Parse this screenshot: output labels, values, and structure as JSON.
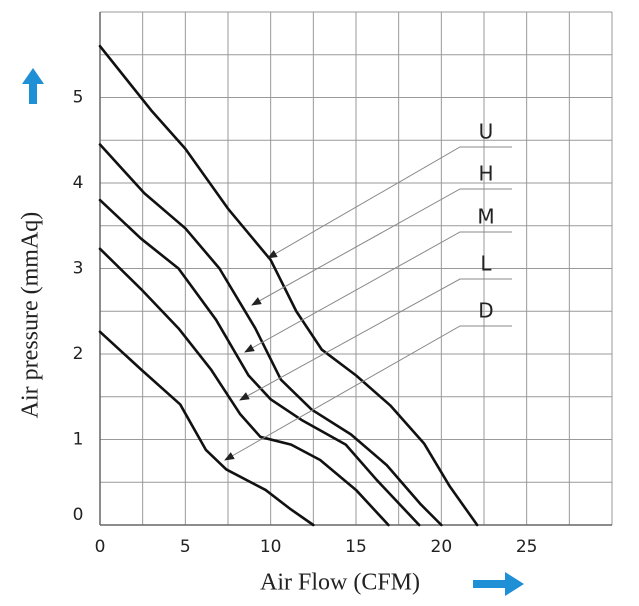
{
  "chart_data": {
    "type": "line",
    "xlabel": "Air Flow (CFM)",
    "ylabel": "Air pressure (mmAq)",
    "xlim": [
      0,
      30
    ],
    "ylim": [
      0,
      6
    ],
    "xticks": [
      0,
      5,
      10,
      15,
      20,
      25
    ],
    "yticks": [
      0,
      1,
      2,
      3,
      4,
      5
    ],
    "xgrid": [
      0,
      2.5,
      5,
      7.5,
      10,
      12.5,
      15,
      17.5,
      20,
      22.5,
      25,
      27.5,
      30
    ],
    "ygrid": [
      0,
      0.5,
      1,
      1.5,
      2,
      2.5,
      3,
      3.5,
      4,
      4.5,
      5,
      5.5,
      6
    ],
    "series": [
      {
        "name": "U",
        "color": "#111111",
        "x": [
          0,
          3,
          5,
          7.5,
          10,
          11.5,
          13,
          15,
          17,
          19,
          20.5,
          22.1
        ],
        "values": [
          5.6,
          4.85,
          4.4,
          3.7,
          3.1,
          2.5,
          2.05,
          1.75,
          1.4,
          0.95,
          0.45,
          0
        ]
      },
      {
        "name": "H",
        "color": "#111111",
        "x": [
          0,
          2.6,
          5,
          7,
          9.1,
          10.6,
          12.4,
          14.7,
          16.8,
          18.8,
          20
        ],
        "values": [
          4.45,
          3.88,
          3.47,
          3.0,
          2.3,
          1.7,
          1.35,
          1.06,
          0.7,
          0.24,
          0
        ]
      },
      {
        "name": "M",
        "color": "#111111",
        "x": [
          0,
          2.4,
          4.6,
          6.8,
          8.7,
          10,
          11.8,
          14.4,
          16.2,
          18.7
        ],
        "values": [
          3.8,
          3.35,
          3.0,
          2.4,
          1.75,
          1.47,
          1.23,
          0.94,
          0.53,
          0
        ]
      },
      {
        "name": "L",
        "color": "#111111",
        "x": [
          0,
          2.4,
          4.6,
          6.5,
          8.2,
          9.4,
          11.2,
          12.9,
          15,
          16.9
        ],
        "values": [
          3.23,
          2.76,
          2.3,
          1.82,
          1.3,
          1.03,
          0.94,
          0.76,
          0.41,
          0
        ]
      },
      {
        "name": "D",
        "color": "#111111",
        "x": [
          0,
          2.4,
          4.7,
          6.2,
          7.4,
          9.7,
          11.2,
          12.5
        ],
        "values": [
          2.26,
          1.82,
          1.41,
          0.88,
          0.65,
          0.41,
          0.18,
          0
        ]
      }
    ]
  }
}
